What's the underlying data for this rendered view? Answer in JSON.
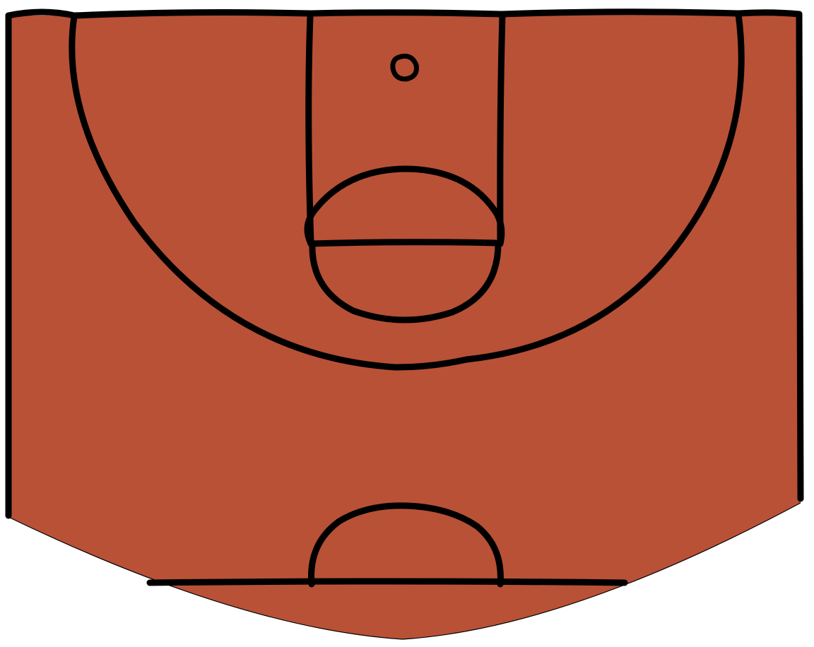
{
  "court": {
    "floor_color": "#B95137",
    "line_color": "#000000",
    "background_color": "#FFFFFF"
  }
}
